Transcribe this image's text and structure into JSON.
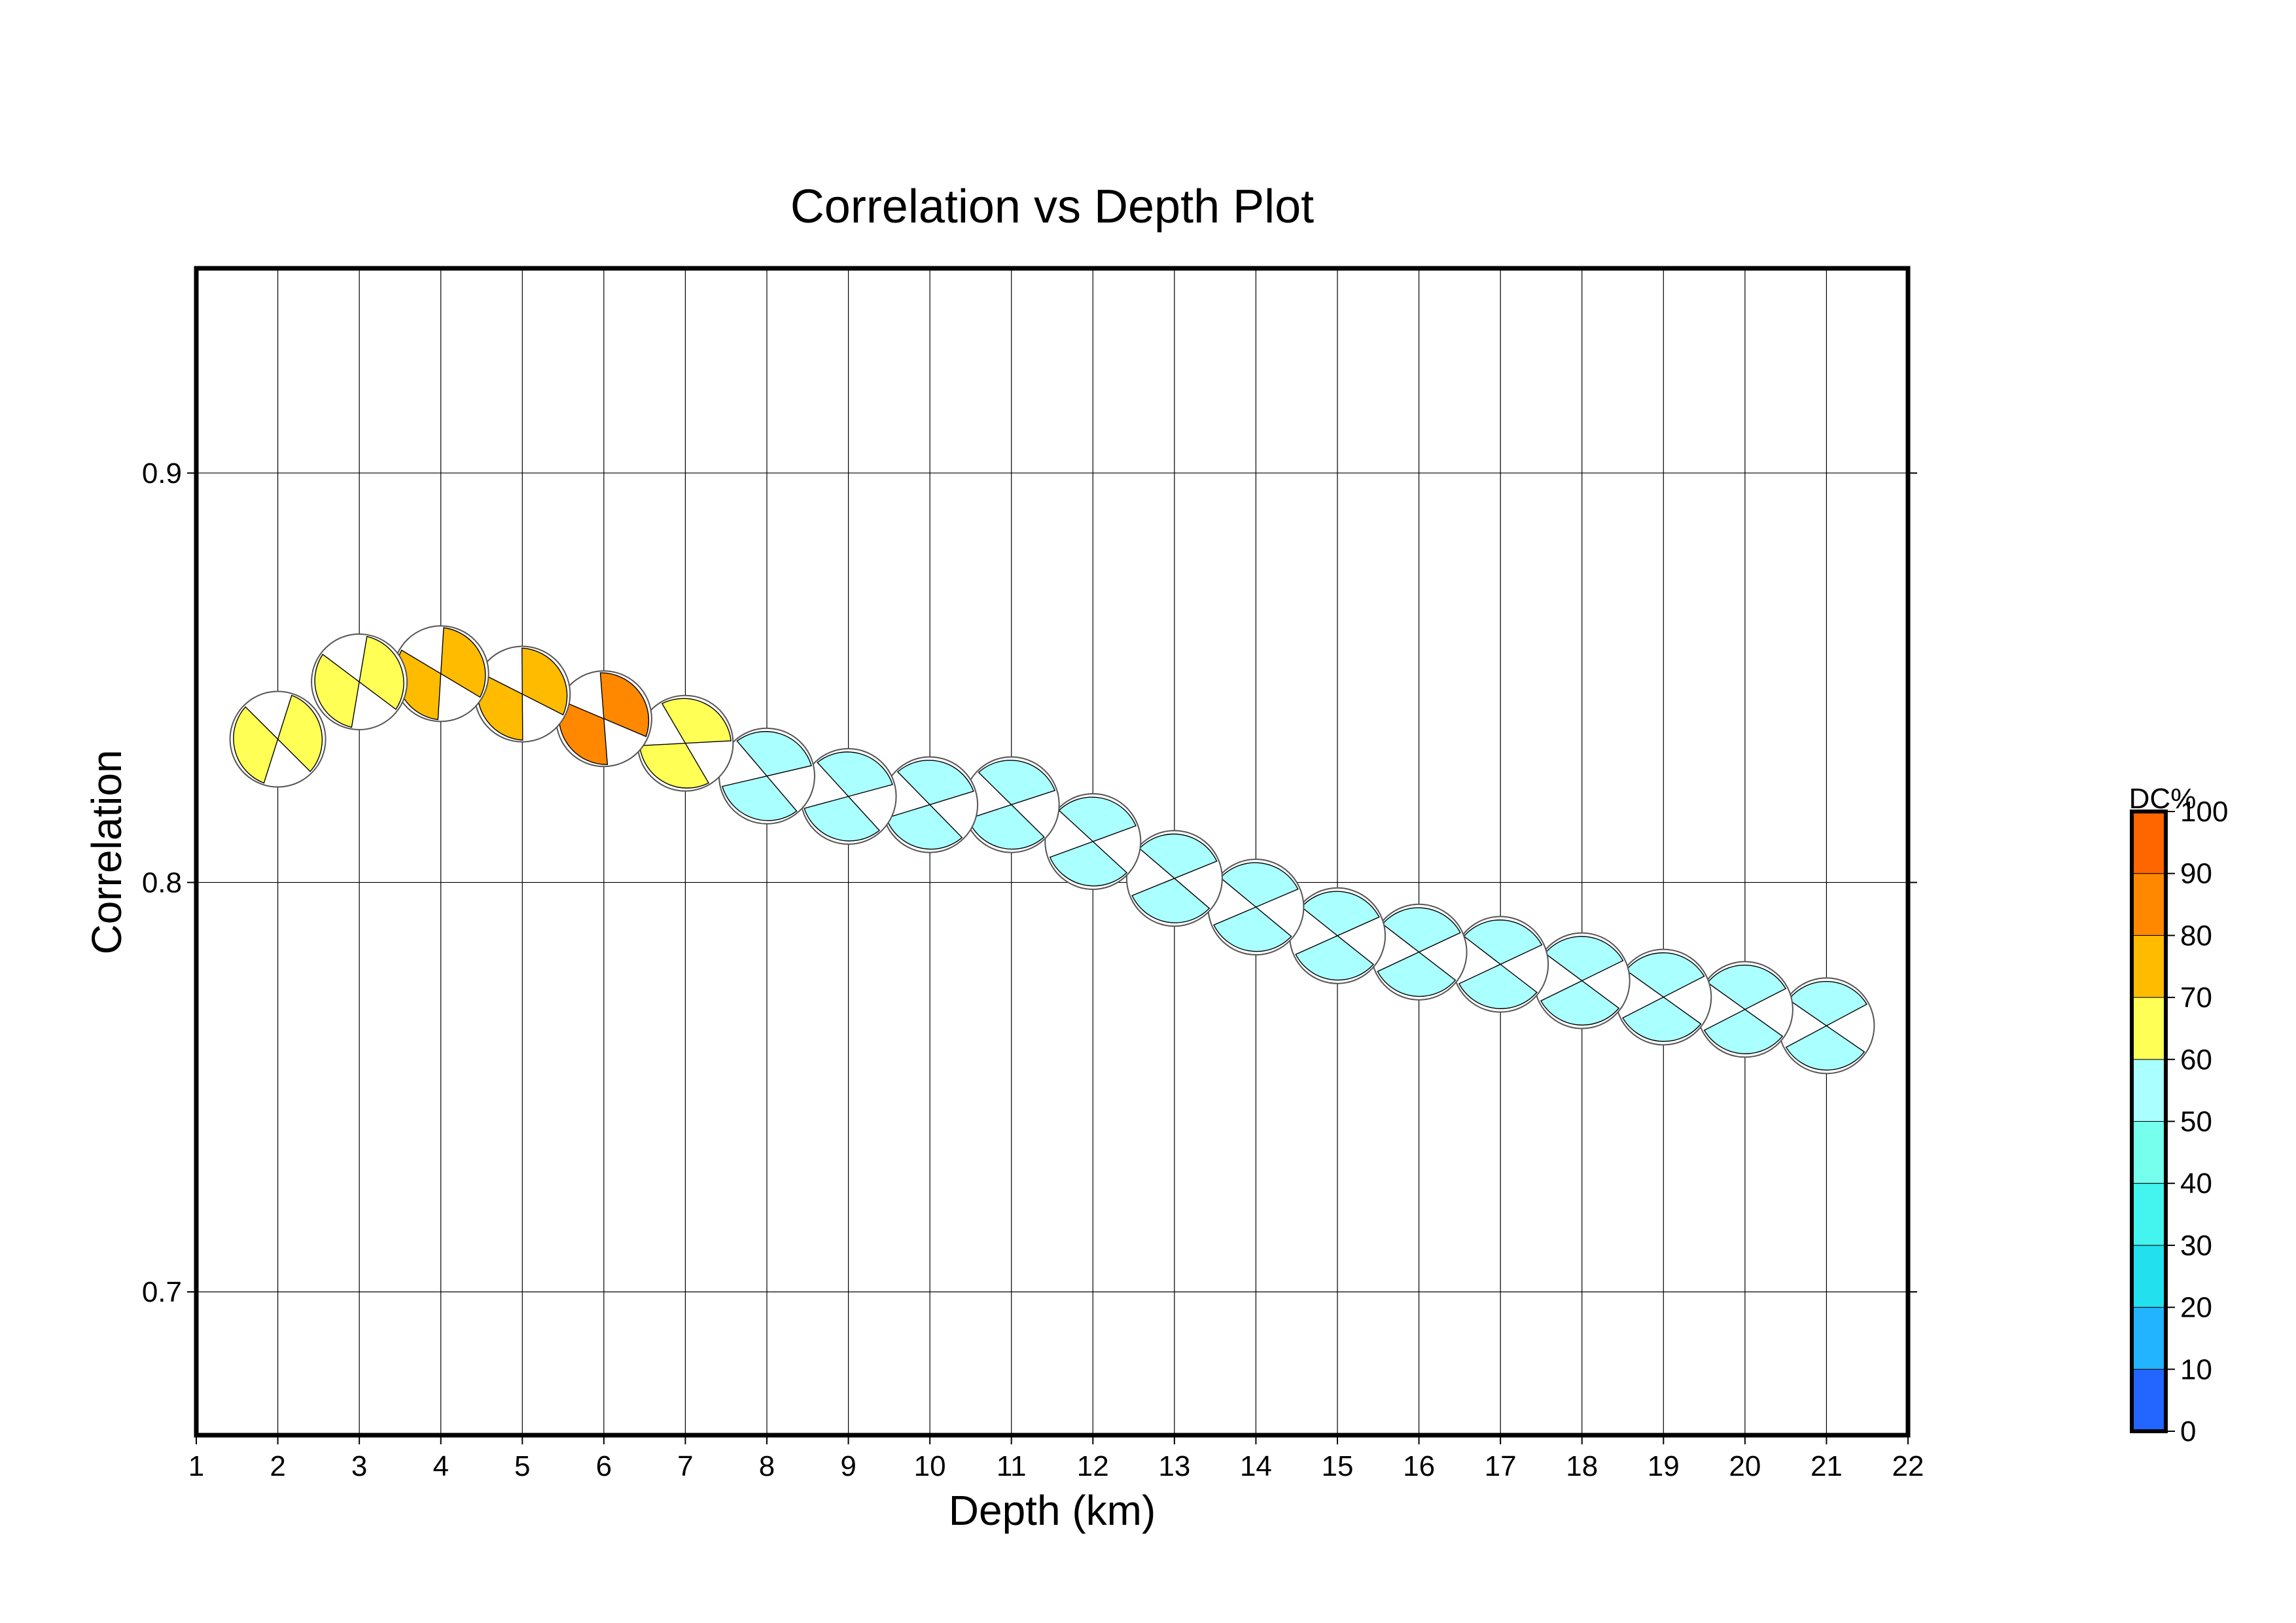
{
  "chart_data": {
    "type": "scatter",
    "title": "Correlation vs Depth Plot",
    "xlabel": "Depth (km)",
    "ylabel": "Correlation",
    "xlim": [
      1,
      22
    ],
    "ylim": [
      0.665,
      0.95
    ],
    "xticks": [
      "1",
      "2",
      "3",
      "4",
      "5",
      "6",
      "7",
      "8",
      "9",
      "10",
      "11",
      "12",
      "13",
      "14",
      "15",
      "16",
      "17",
      "18",
      "19",
      "20",
      "21",
      "22"
    ],
    "yticks": [
      "0.7",
      "0.8",
      "0.9"
    ],
    "grid": true,
    "series": [
      {
        "name": "focal mechanisms",
        "x": [
          2,
          3,
          4,
          5,
          6,
          7,
          8,
          9,
          10,
          11,
          12,
          13,
          14,
          15,
          16,
          17,
          18,
          19,
          20,
          21
        ],
        "y": [
          0.835,
          0.849,
          0.851,
          0.846,
          0.84,
          0.834,
          0.826,
          0.821,
          0.819,
          0.819,
          0.81,
          0.801,
          0.794,
          0.787,
          0.783,
          0.78,
          0.776,
          0.772,
          0.769,
          0.765
        ],
        "dc_percent": [
          65,
          66,
          72,
          78,
          80,
          66,
          55,
          55,
          55,
          55,
          55,
          55,
          55,
          55,
          55,
          55,
          55,
          55,
          55,
          55
        ],
        "nodal_rotation_deg": [
          38,
          30,
          24,
          20,
          16,
          -10,
          -20,
          -22,
          -24,
          -25,
          -27,
          -29,
          -30,
          -31,
          -32,
          -32,
          -33,
          -34,
          -34,
          -35
        ]
      }
    ],
    "colorbar": {
      "label": "DC%",
      "ticks": [
        "0",
        "10",
        "20",
        "30",
        "40",
        "50",
        "60",
        "70",
        "80",
        "90",
        "100"
      ],
      "colors": [
        "#2266ff",
        "#22b4ff",
        "#22e0ee",
        "#44f4ee",
        "#77ffee",
        "#aaffff",
        "#ffff55",
        "#ffbb00",
        "#ff8800",
        "#ff6600",
        "#ff0000"
      ]
    }
  }
}
